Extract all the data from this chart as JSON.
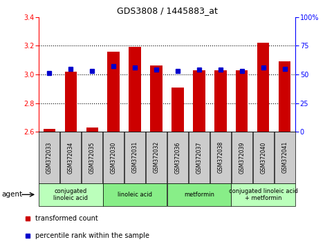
{
  "title": "GDS3808 / 1445883_at",
  "samples": [
    "GSM372033",
    "GSM372034",
    "GSM372035",
    "GSM372030",
    "GSM372031",
    "GSM372032",
    "GSM372036",
    "GSM372037",
    "GSM372038",
    "GSM372039",
    "GSM372040",
    "GSM372041"
  ],
  "bar_values": [
    2.62,
    3.02,
    2.63,
    3.16,
    3.19,
    3.06,
    2.91,
    3.03,
    3.03,
    3.03,
    3.22,
    3.09
  ],
  "percentile_values": [
    51,
    55,
    53,
    57,
    56,
    54,
    53,
    54,
    54,
    53,
    56,
    55
  ],
  "bar_color": "#CC0000",
  "percentile_color": "#0000CC",
  "ylim_left": [
    2.6,
    3.4
  ],
  "ylim_right": [
    0,
    100
  ],
  "yticks_left": [
    2.6,
    2.8,
    3.0,
    3.2,
    3.4
  ],
  "yticks_right": [
    0,
    25,
    50,
    75,
    100
  ],
  "ytick_labels_right": [
    "0",
    "25",
    "50",
    "75",
    "100%"
  ],
  "agent_groups": [
    {
      "label": "conjugated\nlinoleic acid",
      "start": 0,
      "end": 3,
      "color": "#bbffbb"
    },
    {
      "label": "linoleic acid",
      "start": 3,
      "end": 6,
      "color": "#88ee88"
    },
    {
      "label": "metformin",
      "start": 6,
      "end": 9,
      "color": "#88ee88"
    },
    {
      "label": "conjugated linoleic acid\n+ metformin",
      "start": 9,
      "end": 12,
      "color": "#bbffbb"
    }
  ],
  "legend_items": [
    {
      "label": "transformed count",
      "color": "#CC0000"
    },
    {
      "label": "percentile rank within the sample",
      "color": "#0000CC"
    }
  ],
  "bar_width": 0.55,
  "baseline": 2.6,
  "sample_box_color": "#cccccc",
  "title_fontsize": 9,
  "axis_fontsize": 7,
  "label_fontsize": 5.5,
  "agent_fontsize": 6,
  "legend_fontsize": 7
}
